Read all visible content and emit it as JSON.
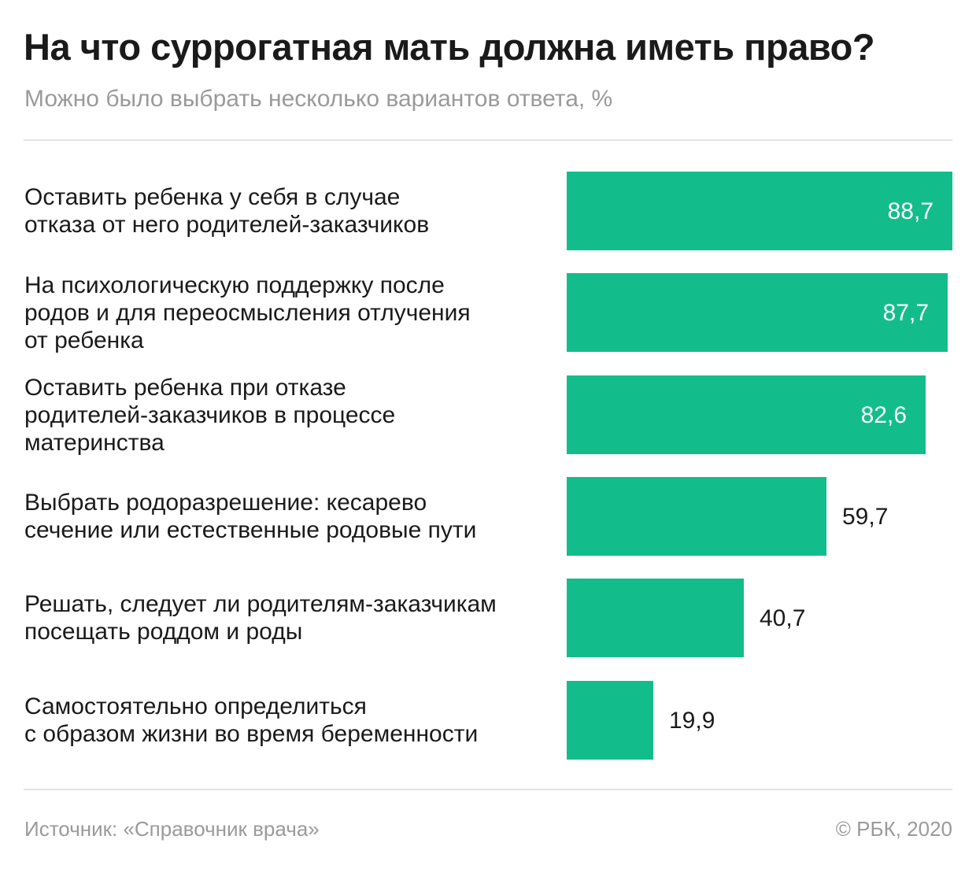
{
  "chart_data": {
    "type": "bar",
    "orientation": "horizontal",
    "title": "На что суррогатная мать должна иметь право?",
    "subtitle": "Можно было выбрать несколько вариантов ответа, %",
    "categories": [
      "Оставить ребенка у себя в случае\nотказа от него родителей-заказчиков",
      "На психологическую поддержку после\nродов и для переосмысления отлучения\nот ребенка",
      "Оставить ребенка при отказе\nродителей-заказчиков в процессе\nматеринства",
      "Выбрать родоразрешение: кесарево\nсечение или естественные родовые пути",
      "Решать, следует ли родителям-заказчикам\nпосещать роддом и роды",
      "Самостоятельно определиться\nс образом жизни во время беременности"
    ],
    "values": [
      88.7,
      87.7,
      82.6,
      59.7,
      40.7,
      19.9
    ],
    "value_labels": [
      "88,7",
      "87,7",
      "82,6",
      "59,7",
      "40,7",
      "19,9"
    ],
    "xlim": [
      0,
      88.7
    ],
    "unit": "%",
    "bar_color": "#13bd8b",
    "grid": false,
    "legend": "none"
  },
  "footer": {
    "source": "Источник: «Справочник врача»",
    "copyright": "© РБК, 2020"
  }
}
